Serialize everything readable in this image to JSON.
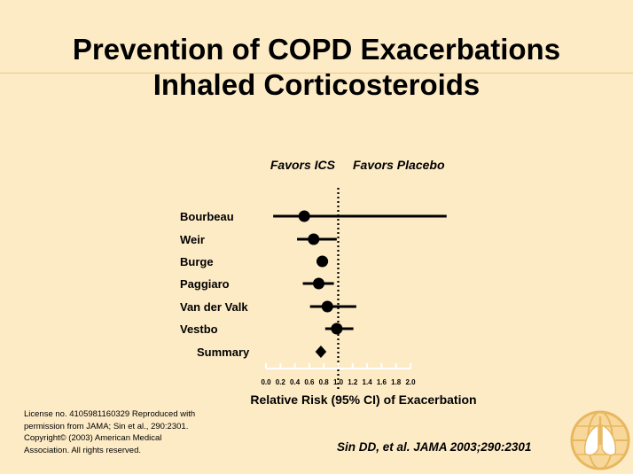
{
  "slide": {
    "title_line1": "Prevention of COPD Exacerbations",
    "title_line2": "Inhaled Corticosteroids",
    "license": "License no. 4105981160329   Reproduced with permission from JAMA; Sin et al., 290:2301.  Copyright© (2003) American Medical Association. All rights reserved.",
    "citation": "Sin DD, et  al. JAMA 2003;290:2301"
  },
  "logo": {
    "icon": "lungs-globe-logo"
  },
  "chart_data": {
    "type": "forest",
    "xlabel": "Relative Risk (95% CI) of Exacerbation",
    "favors_left": "Favors ICS",
    "favors_right": "Favors Placebo",
    "xlim": [
      0,
      2.0
    ],
    "x_ticks": [
      "0.0",
      "0.2",
      "0.4",
      "0.6",
      "0.8",
      "1.0",
      "1.2",
      "1.4",
      "1.6",
      "1.8",
      "2.0"
    ],
    "reference_line": 1.0,
    "studies": [
      {
        "name": "Bourbeau",
        "estimate": 0.53,
        "ci": [
          0.1,
          2.5
        ]
      },
      {
        "name": "Weir",
        "estimate": 0.66,
        "ci": [
          0.43,
          0.98
        ]
      },
      {
        "name": "Burge",
        "estimate": 0.78,
        "ci": [
          0.7,
          0.86
        ]
      },
      {
        "name": "Paggiaro",
        "estimate": 0.73,
        "ci": [
          0.51,
          0.94
        ]
      },
      {
        "name": "Van der Valk",
        "estimate": 0.85,
        "ci": [
          0.61,
          1.25
        ]
      },
      {
        "name": "Vestbo",
        "estimate": 0.98,
        "ci": [
          0.82,
          1.21
        ]
      }
    ],
    "summary": {
      "name": "Summary",
      "estimate": 0.76,
      "ci": [
        0.72,
        0.8
      ]
    },
    "colors": {
      "background": "#fdebc6",
      "marks": "#000000",
      "axis": "#ffffff"
    }
  }
}
